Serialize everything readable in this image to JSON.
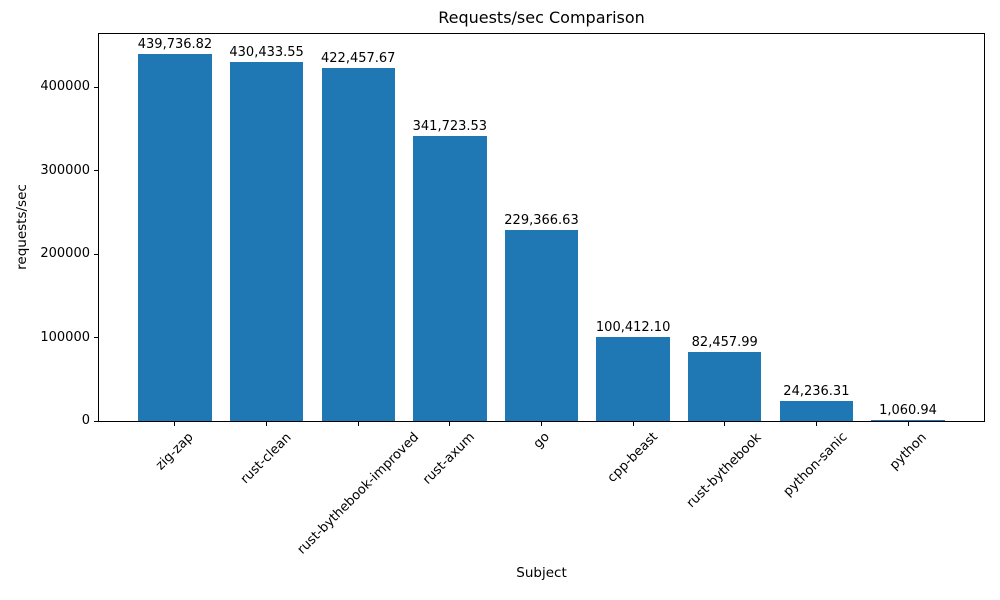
{
  "chart_data": {
    "type": "bar",
    "title": "Requests/sec Comparison",
    "xlabel": "Subject",
    "ylabel": "requests/sec",
    "categories": [
      "zig-zap",
      "rust-clean",
      "rust-bythebook-improved",
      "rust-axum",
      "go",
      "cpp-beast",
      "rust-bythebook",
      "python-sanic",
      "python"
    ],
    "values": [
      439736.82,
      430433.55,
      422457.67,
      341723.53,
      229366.63,
      100412.1,
      82457.99,
      24236.31,
      1060.94
    ],
    "value_labels": [
      "439,736.82",
      "430,433.55",
      "422,457.67",
      "341,723.53",
      "229,366.63",
      "100,412.10",
      "82,457.99",
      "24,236.31",
      "1,060.94"
    ],
    "yticks": [
      0,
      100000,
      200000,
      300000,
      400000
    ],
    "ytick_labels": [
      "0",
      "100000",
      "200000",
      "300000",
      "400000"
    ],
    "ylim": [
      0,
      465000
    ],
    "bar_color": "#1f77b4",
    "grid": false,
    "legend": null,
    "frame": "full-box",
    "xtick_rotation_deg": 45
  }
}
